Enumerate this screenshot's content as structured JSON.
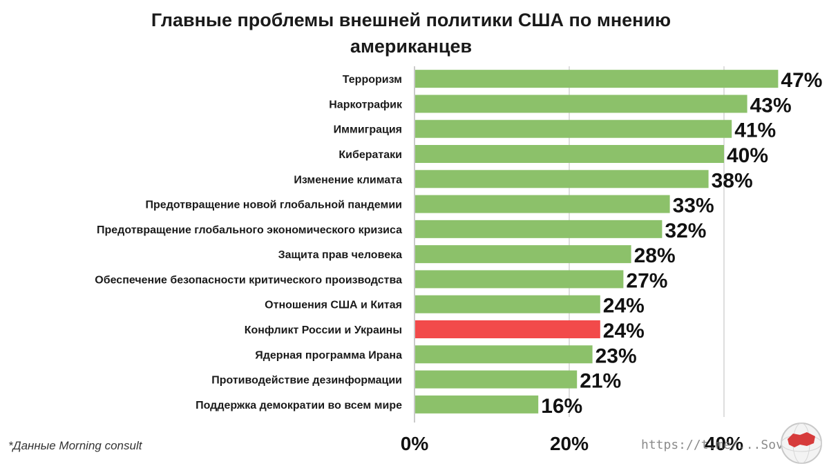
{
  "title": {
    "line1": "Главные проблемы внешней политики США по мнению",
    "line2": "американцев"
  },
  "chart_data": {
    "type": "bar",
    "orientation": "horizontal",
    "title": "Главные проблемы внешней политики США по мнению американцев",
    "categories": [
      "Терроризм",
      "Наркотрафик",
      "Иммиграция",
      "Кибератаки",
      "Изменение климата",
      "Предотвращение новой глобальной пандемии",
      "Предотвращение глобального экономического кризиса",
      "Защита прав человека",
      "Обеспечение безопасности критического производства",
      "Отношения США и Китая",
      "Конфликт России и Украины",
      "Ядерная программа Ирана",
      "Противодействие дезинформации",
      "Поддержка демократии во всем мире"
    ],
    "values": [
      47,
      43,
      41,
      40,
      38,
      33,
      32,
      28,
      27,
      24,
      24,
      23,
      21,
      16
    ],
    "value_labels": [
      "47%",
      "43%",
      "41%",
      "40%",
      "38%",
      "33%",
      "32%",
      "28%",
      "27%",
      "24%",
      "24%",
      "23%",
      "21%",
      "16%"
    ],
    "highlight_index": 10,
    "bar_color": "#8cc16a",
    "highlight_color": "#f24a4a",
    "xlim": [
      0,
      50
    ],
    "xticks": [
      0,
      20,
      40
    ],
    "xtick_labels": [
      "0%",
      "20%",
      "40%"
    ],
    "grid": true,
    "xlabel": "",
    "ylabel": ""
  },
  "footer": {
    "source_note": "*Данные Morning consult",
    "watermark": "https://t.me/...Sovet"
  },
  "colors": {
    "grid": "#d4d4d4",
    "axis": "#b8b8b8"
  }
}
